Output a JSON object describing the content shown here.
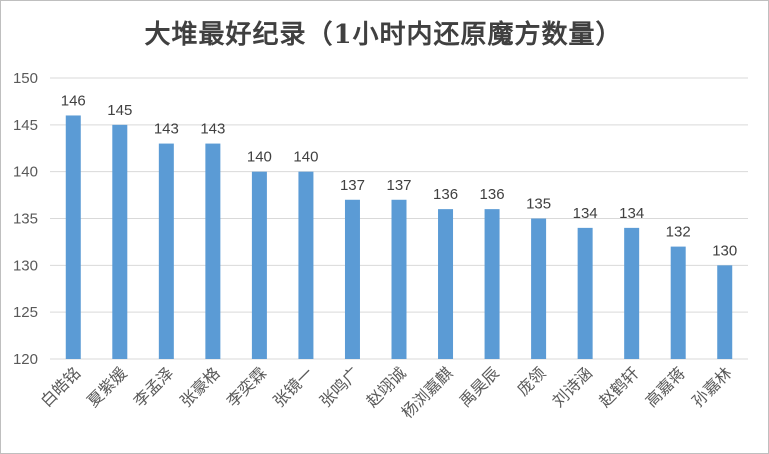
{
  "chart_data": {
    "type": "bar",
    "title": "大堆最好纪录（1小时内还原魔方数量）",
    "categories": [
      "白皓铭",
      "夏紫媛",
      "李孟泽",
      "张豪格",
      "李奕霖",
      "张镜一",
      "张鸣广",
      "赵翊诚",
      "杨浏嘉麒",
      "禹昊辰",
      "庞领",
      "刘诗涵",
      "赵鹤轩",
      "高嘉蒋",
      "孙嘉林"
    ],
    "values": [
      146,
      145,
      143,
      143,
      140,
      140,
      137,
      137,
      136,
      136,
      135,
      134,
      134,
      132,
      130
    ],
    "ylim": [
      120,
      150
    ],
    "yticks": [
      120,
      125,
      130,
      135,
      140,
      145,
      150
    ],
    "grid": true,
    "bar_color": "#5b9bd5",
    "grid_color": "#d9d9d9",
    "data_labels": true
  }
}
